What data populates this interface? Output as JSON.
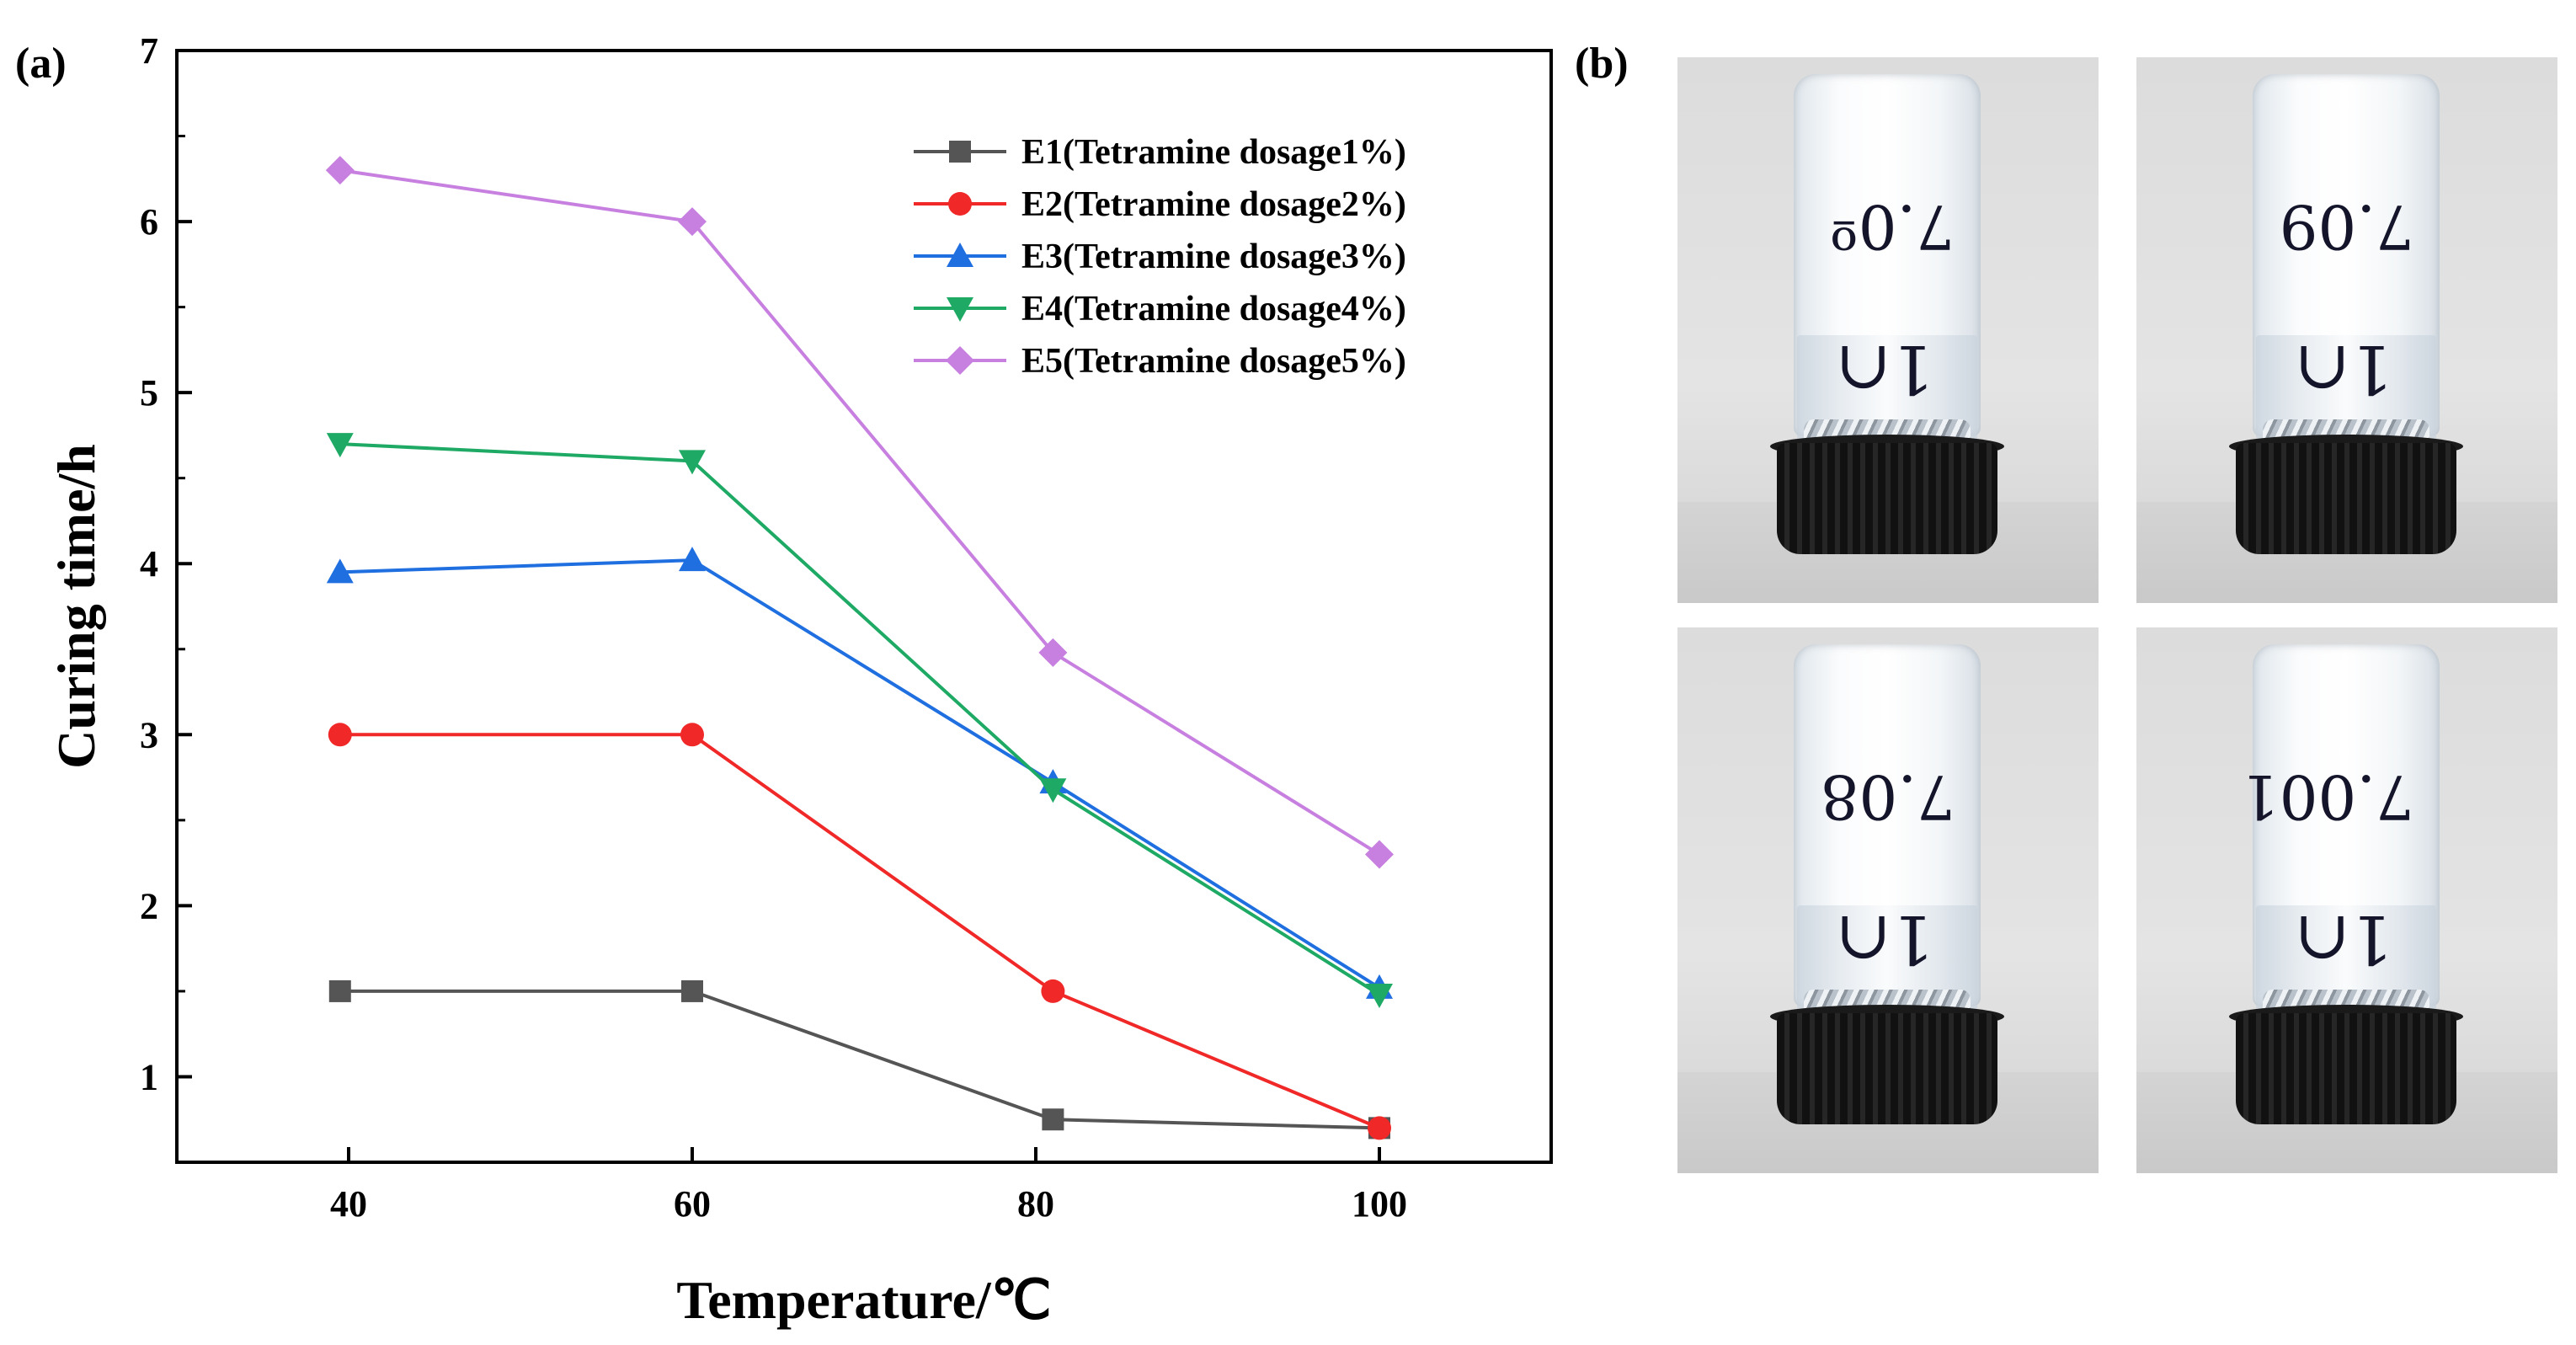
{
  "panel_a_label": "(a)",
  "panel_b_label": "(b)",
  "chart_data": {
    "type": "line",
    "title": "",
    "xlabel": "Temperature/℃",
    "ylabel": "Curing time/h",
    "xlim": [
      30,
      110
    ],
    "ylim": [
      0.5,
      7
    ],
    "x_ticks": [
      40,
      60,
      80,
      100
    ],
    "y_ticks": [
      1,
      2,
      3,
      4,
      5,
      6,
      7
    ],
    "grid": false,
    "legend_position": "top-right",
    "series": [
      {
        "name": "E1(Tetramine dosage1%)",
        "marker": "square",
        "color": "#555555",
        "points": [
          [
            39.5,
            1.5
          ],
          [
            60,
            1.5
          ],
          [
            81,
            0.75
          ],
          [
            100,
            0.7
          ]
        ]
      },
      {
        "name": "E2(Tetramine dosage2%)",
        "marker": "circle",
        "color": "#f02828",
        "points": [
          [
            39.5,
            3.0
          ],
          [
            60,
            3.0
          ],
          [
            81,
            1.5
          ],
          [
            100,
            0.7
          ]
        ]
      },
      {
        "name": "E3(Tetramine dosage3%)",
        "marker": "triangle-up",
        "color": "#1f6fe0",
        "points": [
          [
            39.5,
            3.95
          ],
          [
            60,
            4.02
          ],
          [
            81,
            2.72
          ],
          [
            100,
            1.52
          ]
        ]
      },
      {
        "name": "E4(Tetramine dosage4%)",
        "marker": "triangle-down",
        "color": "#1eaa64",
        "points": [
          [
            39.5,
            4.7
          ],
          [
            60,
            4.6
          ],
          [
            81,
            2.68
          ],
          [
            100,
            1.48
          ]
        ]
      },
      {
        "name": "E5(Tetramine dosage5%)",
        "marker": "diamond",
        "color": "#c77fe0",
        "points": [
          [
            39.5,
            6.3
          ],
          [
            60,
            6.0
          ],
          [
            81,
            3.48
          ],
          [
            100,
            2.3
          ]
        ]
      }
    ]
  },
  "photos": [
    {
      "label_top": "7.0º",
      "label_bottom": "1∩"
    },
    {
      "label_top": "7.09",
      "label_bottom": "1∩"
    },
    {
      "label_top": "7.08",
      "label_bottom": "1∩"
    },
    {
      "label_top": "7.001",
      "label_bottom": "1∩"
    }
  ]
}
